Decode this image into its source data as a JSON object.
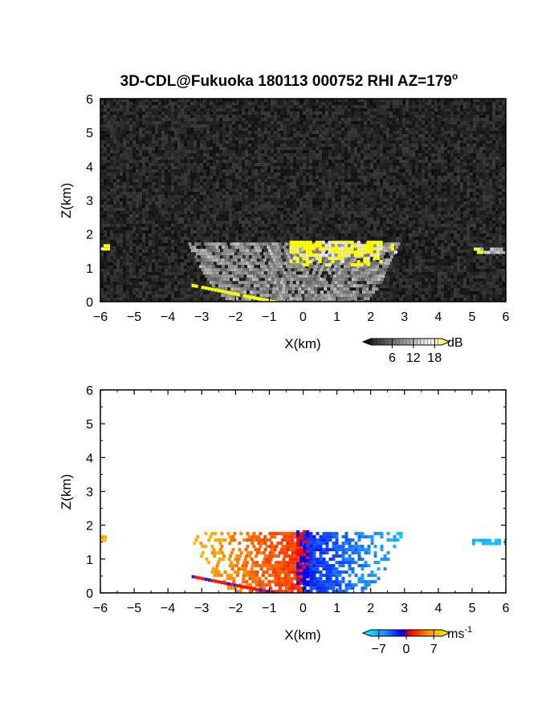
{
  "title": "3D-CDL@Fukuoka 180113 000752 RHI AZ=179",
  "title_superscript": "o",
  "chart_data": [
    {
      "type": "heatmap",
      "panel": "reflectivity",
      "xlabel": "X(km)",
      "ylabel": "Z(km)",
      "xlim": [
        -6,
        6
      ],
      "ylim": [
        0,
        6
      ],
      "xticks": [
        "-6",
        "-5",
        "-4",
        "-3",
        "-2",
        "-1",
        "0",
        "1",
        "2",
        "3",
        "4",
        "5",
        "6"
      ],
      "yticks": [
        "0",
        "1",
        "2",
        "3",
        "4",
        "5",
        "6"
      ],
      "colorbar": {
        "unit": "dB",
        "ticks": [
          "6",
          "12",
          "18"
        ],
        "tick_values": [
          6,
          12,
          18
        ],
        "range": [
          0,
          20
        ],
        "colors": [
          "#000000",
          "#ffffff",
          "#ffff00"
        ]
      },
      "background": "noise",
      "features": [
        {
          "shape": "fan",
          "x": [
            -3.4,
            2.8
          ],
          "z": [
            0,
            1.75
          ],
          "level": "weak"
        },
        {
          "shape": "band",
          "x": [
            -0.4,
            2.3
          ],
          "z": [
            1.1,
            1.8
          ],
          "level": "strong"
        },
        {
          "shape": "band",
          "x": [
            2.6,
            2.75
          ],
          "z": [
            1.5,
            1.7
          ],
          "level": "strong"
        },
        {
          "shape": "band",
          "x": [
            -6.0,
            -5.75
          ],
          "z": [
            1.55,
            1.7
          ],
          "level": "strong"
        },
        {
          "shape": "band",
          "x": [
            5.05,
            5.25
          ],
          "z": [
            1.45,
            1.6
          ],
          "level": "strong"
        },
        {
          "shape": "band",
          "x": [
            5.25,
            6.0
          ],
          "z": [
            1.45,
            1.6
          ],
          "level": "medium"
        },
        {
          "shape": "line",
          "x": [
            -3.3,
            -0.8
          ],
          "z": [
            0.5,
            0.0
          ],
          "level": "strong"
        }
      ]
    },
    {
      "type": "heatmap",
      "panel": "doppler velocity",
      "xlabel": "X(km)",
      "ylabel": "Z(km)",
      "xlim": [
        -6,
        6
      ],
      "ylim": [
        0,
        6
      ],
      "xticks": [
        "-6",
        "-5",
        "-4",
        "-3",
        "-2",
        "-1",
        "0",
        "1",
        "2",
        "3",
        "4",
        "5",
        "6"
      ],
      "yticks": [
        "0",
        "1",
        "2",
        "3",
        "4",
        "5",
        "6"
      ],
      "colorbar": {
        "unit": "ms",
        "unit_superscript": "-1",
        "ticks": [
          "-7",
          "0",
          "7"
        ],
        "tick_values": [
          -7,
          0,
          7
        ],
        "range": [
          -9,
          9
        ],
        "colors": [
          "#00ffff",
          "#1e90ff",
          "#0000ff",
          "#ff0000",
          "#ff8c00",
          "#ffff00"
        ]
      },
      "background": "none",
      "features": [
        {
          "shape": "fan",
          "x": [
            -3.4,
            0.0
          ],
          "z": [
            0,
            1.8
          ],
          "value": 5
        },
        {
          "shape": "fan",
          "x": [
            0.0,
            2.9
          ],
          "z": [
            0,
            1.8
          ],
          "value": -5
        },
        {
          "shape": "band",
          "x": [
            -0.2,
            0.1
          ],
          "z": [
            0.3,
            1.85
          ],
          "value": 0
        },
        {
          "shape": "band",
          "x": [
            -6.0,
            -5.75
          ],
          "z": [
            1.55,
            1.7
          ],
          "value": 6
        },
        {
          "shape": "band",
          "x": [
            5.0,
            6.0
          ],
          "z": [
            1.45,
            1.6
          ],
          "value": -6
        },
        {
          "shape": "line",
          "x": [
            -3.3,
            -0.8
          ],
          "z": [
            0.5,
            0.0
          ],
          "value": 1
        }
      ]
    }
  ]
}
